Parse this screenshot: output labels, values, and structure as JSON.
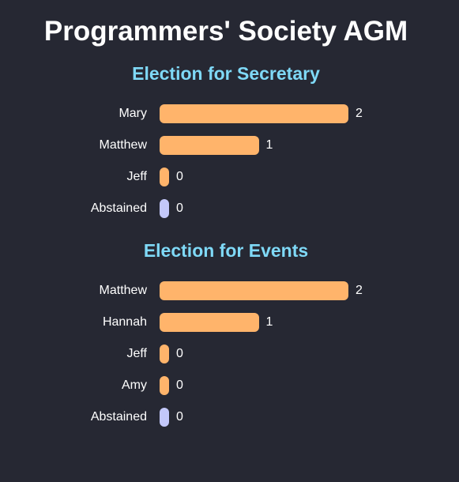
{
  "page": {
    "title": "Programmers' Society AGM"
  },
  "colors": {
    "background": "#262833",
    "title": "#ffffff",
    "election_heading": "#7fd9f7",
    "candidate_bar": "#ffb46b",
    "abstain_bar": "#c3c8fa"
  },
  "chart_data": [
    {
      "type": "bar",
      "orientation": "horizontal",
      "title": "Election for Secretary",
      "categories": [
        "Mary",
        "Matthew",
        "Jeff",
        "Abstained"
      ],
      "values": [
        2,
        1,
        0,
        0
      ],
      "xlim": [
        0,
        2
      ],
      "grid": false,
      "legend": "none"
    },
    {
      "type": "bar",
      "orientation": "horizontal",
      "title": "Election for Events",
      "categories": [
        "Matthew",
        "Hannah",
        "Jeff",
        "Amy",
        "Abstained"
      ],
      "values": [
        2,
        1,
        0,
        0,
        0
      ],
      "xlim": [
        0,
        2
      ],
      "grid": false,
      "legend": "none"
    }
  ]
}
